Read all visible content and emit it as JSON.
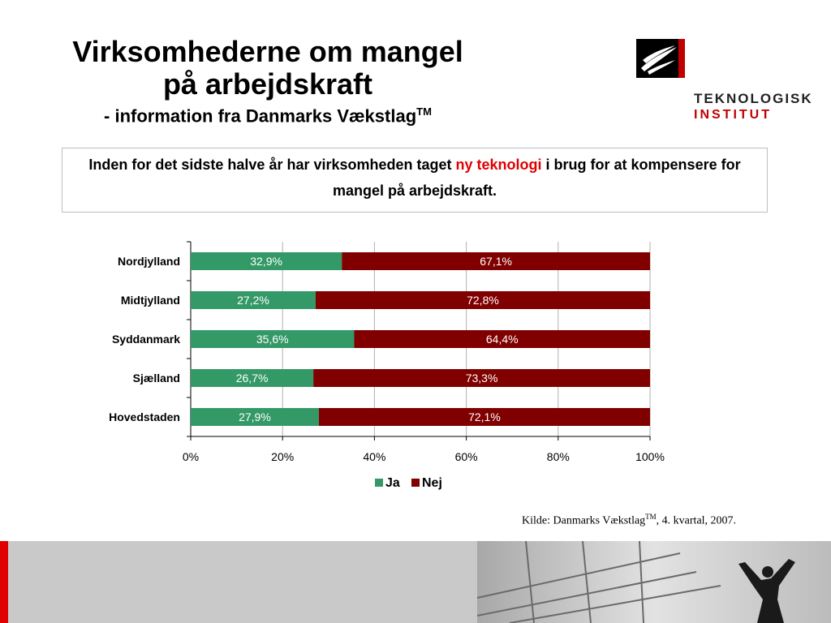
{
  "title": {
    "line1": "Virksomhederne om mangel",
    "line2": "på arbejdskraft",
    "subtitle": "- information fra Danmarks Vækstlag",
    "subtitle_sup": "TM"
  },
  "logo": {
    "name": "TEKNOLOGISK",
    "sub": "INSTITUT"
  },
  "question": {
    "part1": "Inden for det sidste halve år har virksomheden taget ",
    "highlight": "ny teknologi",
    "part2": " i brug for at kompensere for mangel på arbejdskraft."
  },
  "chart_data": {
    "type": "bar",
    "orientation": "horizontal",
    "stacked": true,
    "categories": [
      "Nordjylland",
      "Midtjylland",
      "Syddanmark",
      "Sjælland",
      "Hovedstaden"
    ],
    "series": [
      {
        "name": "Ja",
        "color": "#339966",
        "values": [
          32.9,
          27.2,
          35.6,
          26.7,
          27.9
        ],
        "labels": [
          "32,9%",
          "27,2%",
          "35,6%",
          "26,7%",
          "27,9%"
        ]
      },
      {
        "name": "Nej",
        "color": "#800000",
        "values": [
          67.1,
          72.8,
          64.4,
          73.3,
          72.1
        ],
        "labels": [
          "67,1%",
          "72,8%",
          "64,4%",
          "73,3%",
          "72,1%"
        ]
      }
    ],
    "xlim": [
      0,
      100
    ],
    "xticks": [
      0,
      20,
      40,
      60,
      80,
      100
    ],
    "xtick_labels": [
      "0%",
      "20%",
      "40%",
      "60%",
      "80%",
      "100%"
    ],
    "grid": true,
    "legend": "bottom"
  },
  "source": {
    "text": "Kilde: Danmarks Vækstlag",
    "sup": "TM",
    "suffix": ", 4. kvartal, 2007."
  },
  "colors": {
    "accent": "#e00000",
    "footer_gray": "#c9c9c9"
  }
}
